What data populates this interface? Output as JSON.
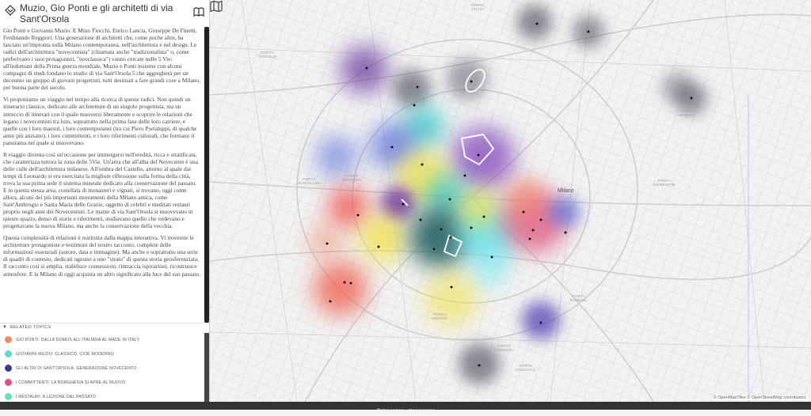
{
  "panel": {
    "title": "Muzio, Gio Ponti e gli architetti di via Sant'Orsola",
    "paragraphs": [
      "Gio Ponti e Giovanni Muzio. E Mino Fiocchi, Enrico Lancia, Giuseppe De Finetti, Ferdinando Reggiori. Una generazione di architetti che, come poche altre, ha lasciato un'impronta sulla Milano contemporanea, nell'architettura e nel design. Le radici dell'architettura \"novecentista\" (chiamata anche \"tradizionalista\" o, come preferivano i suoi protagonisti, \"neoclassica\") vanno cercate nelle 5 Vie: all'indomani della Prima guerra mondiale, Muzio e Ponti insieme con alcuni compagni di studi fondano lo studio di via Sant'Orsola 5 che aggregherà per un decennio un gruppo di giovani progettisti, tutti destinati a fare grandi cose a Milano, per buona parte del secolo.",
      "Vi proponiamo un viaggio nel tempo alla ricerca di queste radici. Non quindi un itinerario classico, dedicato alle architetture di un singolo progettista, ma un intreccio di itinerari con il quale muoversi liberamente e scoprire le relazioni che legano i novecentisti tra loro, soprattutto nella prima fase delle loro carriere, e quelle con i loro maestri, i loro contemporanei (tra cui Piero Portaluppi, di qualche anno più anziano), i loro committenti, e i loro riferimenti culturali, che formano il panorama nel quale si muovevano.",
      "Il viaggio diventa così un'occasione per immergersi nell'eredità, ricca e stratificata, che caratterizza tuttora la zona delle 5Vie. Un'area che all'alba del Novecento è una delle culle dell'architettura milanese. All'ombra del Castello, attorno al quale dai tempi di Leonardo si era esercitata la migliore riflessione sulla forma della città, trova la sua prima sede il sistema museale dedicato alla conservazione del passato. E in questa stessa area, costellata di monasteri e vignati, si trovano, oggi come allora, alcuni dei più importanti monumenti della Milano antica, come Sant'Ambrogio e Santa Maria delle Grazie, oggetto di celebri e meditati restauri proprio negli anni dei Novecentisti. Le mante di via Sant'Orsola si muovevano in questo spazio, denso di storie e riferimenti, studiavano quello che vedevano e progettavano la nuova Milano, ma anche la conservazione della vecchia.",
      "Questa complessità di relazioni è restituita dalla mappa interattiva. Vi troverete le architetture protagoniste e testimoni del nostro racconto, complete delle informazioni essenziali (autore, data e immagine). Ma anche e soprattutto una serie di quadri di contesto, dedicati ognuno a uno \"strato\" di questa storia geosferenziata. Il racconto così si amplia, stabilisce connessioni, rintraccia ispirazioni, ricostruisce atmosfere. E la Milano di oggi acquista un altro significato alla luce del suo passato."
    ]
  },
  "related": {
    "heading": "RELATED TOPICS",
    "topics": [
      {
        "label": "GIO PONTI: DALLA DOMUS ALL'ITALIANA AL MADE IN ITALY",
        "color": "#f08a6a"
      },
      {
        "label": "GIOVANNI MUZIO: CLASSICO, CIOÈ MODERNO",
        "color": "#5fd9d0"
      },
      {
        "label": "GLI ALTRI DI SANT'ORSOLA: GENERAZIONE NOVECENTO",
        "color": "#3b3b8c"
      },
      {
        "label": "I COMMITTENTI: LA BORGHESIA SI APRE AL NUOVO",
        "color": "#e0507a"
      },
      {
        "label": "I RESTAURI: A LEZIONE DAL PASSATO",
        "color": "#6be0b0"
      }
    ]
  },
  "map": {
    "city_label": "Milano",
    "place_labels": [
      {
        "text": "PORTA\nVOLTA"
      },
      {
        "text": "PORTA\nNUOVA"
      },
      {
        "text": "PORTA\nTENAGLIA"
      },
      {
        "text": "TORRE\nSFORZA"
      },
      {
        "text": "PORTA\nVENEZIA"
      },
      {
        "text": "PORTA\nMAGENTA"
      },
      {
        "text": "PORTA\nMONFORTE"
      },
      {
        "text": "PORTA\nVERCELLINA"
      },
      {
        "text": "PORTA\nGENOVA"
      },
      {
        "text": "PORTA\nLODOVICA"
      },
      {
        "text": "PORTA\nVIGENTINA"
      },
      {
        "text": "PORTA\nROMANA"
      }
    ],
    "attribution": "© OpenMapTiles © OpenStreetMap contributors"
  },
  "footer": {
    "link_text": "@stgoecmap-urbangenome"
  },
  "icons": {
    "logo": "diamond-logo-icon",
    "book": "book-icon",
    "map": "map-icon"
  },
  "colors": {
    "red": "#ef4444",
    "orange": "#f59e6a",
    "yellow": "#f0e040",
    "teal": "#2ec4c4",
    "cyan": "#7ae9f0",
    "navy": "#3a3a9a",
    "purple": "#6a3aa0",
    "dark": "#222222",
    "blue": "#4a5fd8",
    "grey": "#555566"
  }
}
